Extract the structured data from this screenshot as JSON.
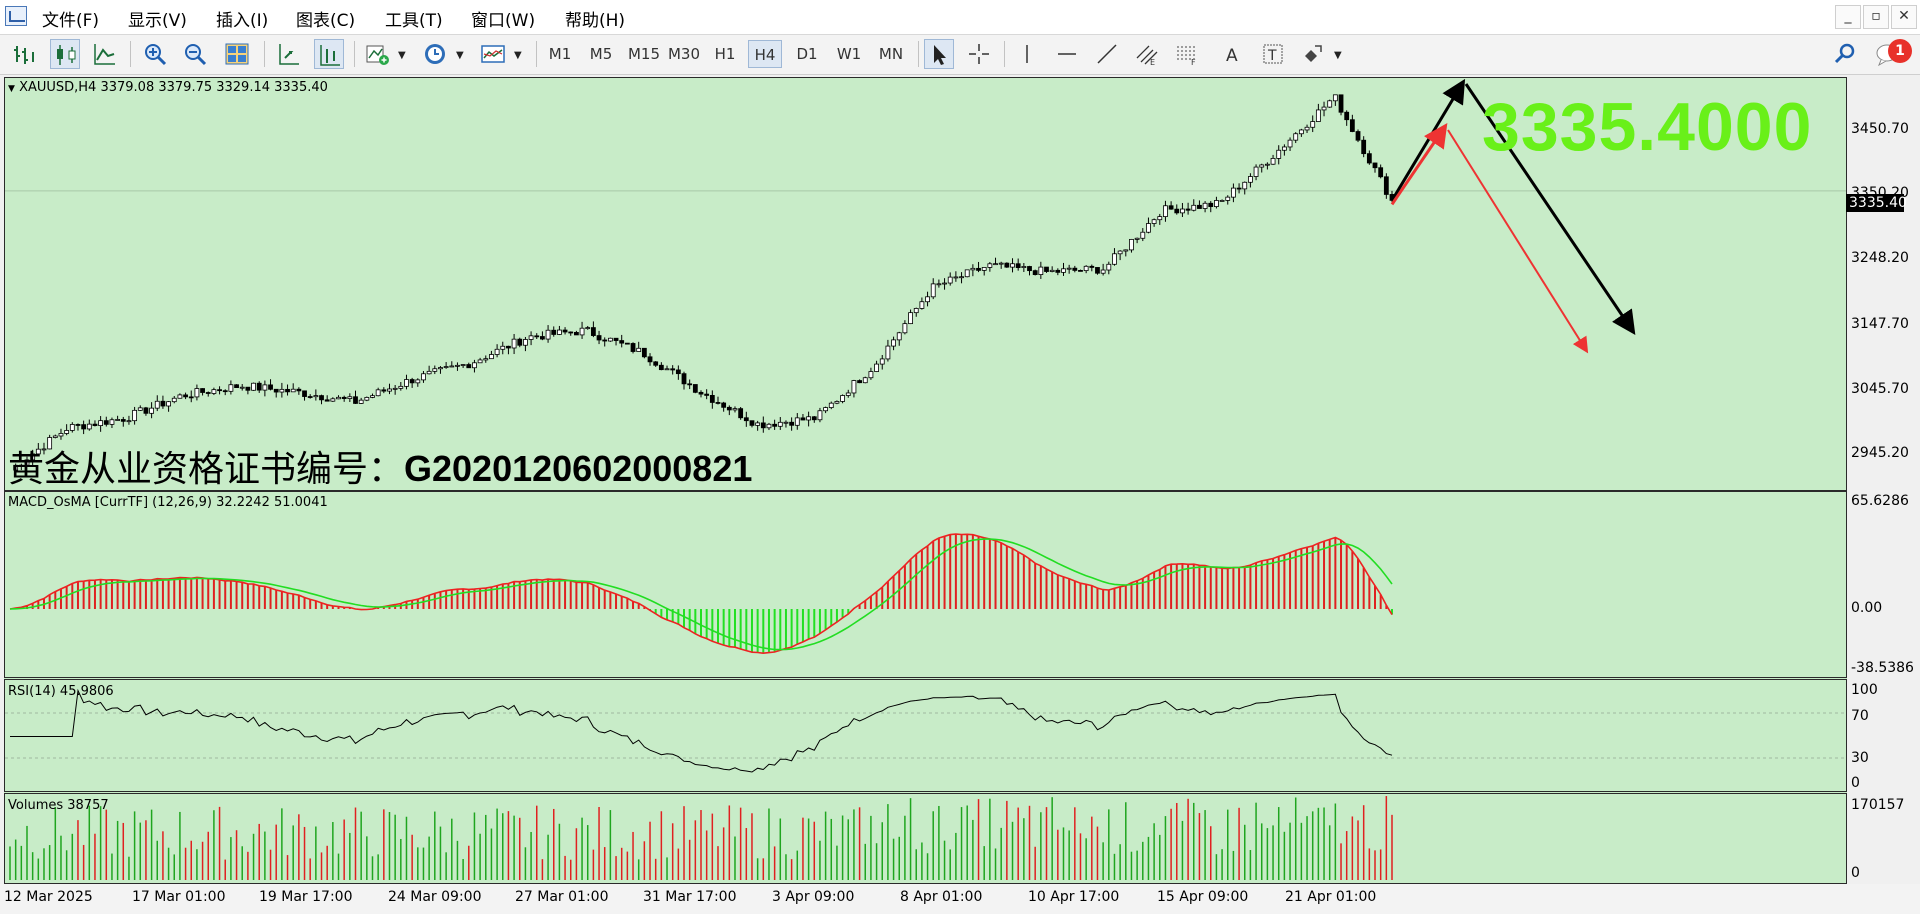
{
  "menubar": {
    "items": [
      "文件(F)",
      "显示(V)",
      "插入(I)",
      "图表(C)",
      "工具(T)",
      "窗口(W)",
      "帮助(H)"
    ],
    "window_buttons": [
      "_",
      "▫",
      "✕"
    ]
  },
  "toolbar": {
    "timeframes": [
      "M1",
      "M5",
      "M15",
      "M30",
      "H1",
      "H4",
      "D1",
      "W1",
      "MN"
    ],
    "active_timeframe": "H4",
    "notification_count": "1"
  },
  "main_chart": {
    "header": "XAUUSD,H4  3379.08 3379.75 3329.14 3335.40",
    "symbol": "XAUUSD",
    "timeframe": "H4",
    "ohlc": {
      "open": 3379.08,
      "high": 3379.75,
      "low": 3329.14,
      "close": 3335.4
    },
    "price_axis": [
      "3450.70",
      "3350.20",
      "3248.20",
      "3147.70",
      "3045.70",
      "2945.20"
    ],
    "current_price_tag": "3335.40",
    "big_price": "3335.4000",
    "watermark_text": "黄金从业资格证书编号：",
    "watermark_id": "G202012060200082​1"
  },
  "macd": {
    "header": "MACD_OsMA [CurrTF] (12,26,9) 32.2242 51.0041",
    "axis": [
      "65.6286",
      "0.00",
      "-38.5386"
    ]
  },
  "rsi": {
    "header": "RSI(14) 45.9806",
    "axis": [
      "100",
      "70",
      "30",
      "0"
    ]
  },
  "volumes": {
    "header": "Volumes 38757",
    "axis": [
      "170157",
      "0"
    ]
  },
  "time_axis": [
    "12 Mar 2025",
    "17 Mar 01:00",
    "19 Mar 17:00",
    "24 Mar 09:00",
    "27 Mar 01:00",
    "31 Mar 17:00",
    "3 Apr 09:00",
    "8 Apr 01:00",
    "10 Apr 17:00",
    "15 Apr 09:00",
    "21 Apr 01:00"
  ],
  "colors": {
    "background": "#c8ecc8",
    "bull_histogram": "#e02020",
    "bear_histogram": "#22e022",
    "big_price": "#69f019",
    "arrow_black": "#000000",
    "arrow_red": "#ee3333"
  },
  "chart_data": {
    "type": "line",
    "title": "XAUUSD,H4",
    "x_range": [
      "12 Mar 2025",
      "22 Apr 2025"
    ],
    "ylim": [
      2920,
      3490
    ],
    "price_path": [
      {
        "x": "12 Mar 2025",
        "y": 2920
      },
      {
        "x": "13 Mar 2025",
        "y": 2985
      },
      {
        "x": "17 Mar 01:00",
        "y": 3000
      },
      {
        "x": "18 Mar 2025",
        "y": 3035
      },
      {
        "x": "19 Mar 17:00",
        "y": 3050
      },
      {
        "x": "21 Mar 2025",
        "y": 3040
      },
      {
        "x": "24 Mar 09:00",
        "y": 3025
      },
      {
        "x": "27 Mar 01:00",
        "y": 3060
      },
      {
        "x": "28 Mar 2025",
        "y": 3085
      },
      {
        "x": "31 Mar 17:00",
        "y": 3125
      },
      {
        "x": "2 Apr 2025",
        "y": 3135
      },
      {
        "x": "3 Apr 09:00",
        "y": 3100
      },
      {
        "x": "4 Apr 2025",
        "y": 3040
      },
      {
        "x": "7 Apr 2025",
        "y": 2990
      },
      {
        "x": "8 Apr 01:00",
        "y": 3000
      },
      {
        "x": "9 Apr 2025",
        "y": 3080
      },
      {
        "x": "10 Apr 17:00",
        "y": 3200
      },
      {
        "x": "11 Apr 2025",
        "y": 3235
      },
      {
        "x": "14 Apr 2025",
        "y": 3225
      },
      {
        "x": "15 Apr 09:00",
        "y": 3230
      },
      {
        "x": "16 Apr 2025",
        "y": 3320
      },
      {
        "x": "17 Apr 2025",
        "y": 3330
      },
      {
        "x": "21 Apr 01:00",
        "y": 3410
      },
      {
        "x": "22 Apr 2025",
        "y": 3495
      },
      {
        "x": "22 Apr 2025 late",
        "y": 3335.4
      }
    ]
  }
}
